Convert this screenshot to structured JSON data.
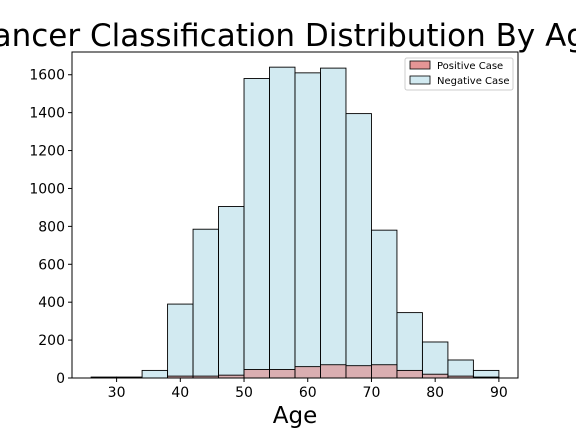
{
  "chart_data": {
    "type": "bar",
    "title": "Cancer Classification Distribution By Age",
    "xlabel": "Age",
    "ylabel": "",
    "xlim": [
      23,
      93
    ],
    "ylim": [
      0,
      1720
    ],
    "xticks": [
      30,
      40,
      50,
      60,
      70,
      80,
      90
    ],
    "yticks": [
      0,
      200,
      400,
      600,
      800,
      1000,
      1200,
      1400,
      1600
    ],
    "grid": false,
    "legend_position": "top-right",
    "bin_edges": [
      26,
      30,
      34,
      38,
      42,
      46,
      50,
      54,
      58,
      62,
      66,
      70,
      74,
      78,
      82,
      86,
      90
    ],
    "series": [
      {
        "name": "Positive Case",
        "color": "#e07b7b",
        "values": [
          0,
          0,
          0,
          10,
          10,
          15,
          45,
          45,
          60,
          70,
          65,
          70,
          40,
          20,
          10,
          5
        ]
      },
      {
        "name": "Negative Case",
        "color": "#add8e6",
        "values": [
          5,
          5,
          40,
          390,
          785,
          905,
          1580,
          1640,
          1610,
          1635,
          1395,
          780,
          345,
          190,
          95,
          40
        ]
      }
    ]
  }
}
